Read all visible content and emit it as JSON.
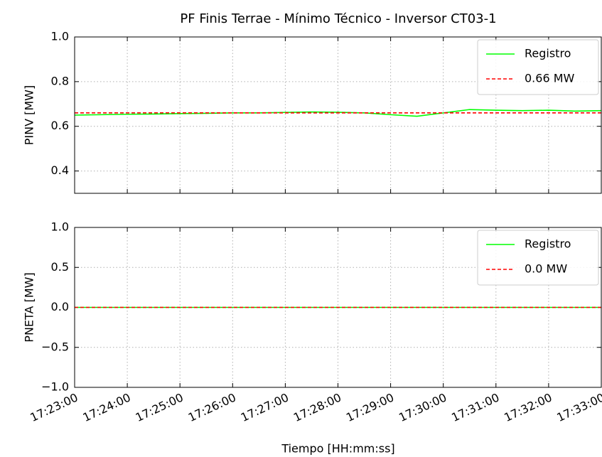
{
  "chart_data": [
    {
      "type": "line",
      "title": "PF Finis Terrae - Mínimo Técnico - Inversor CT03-1",
      "ylabel": "PINV [MW]",
      "x": [
        "17:23:00",
        "17:23:30",
        "17:24:00",
        "17:24:30",
        "17:25:00",
        "17:25:30",
        "17:26:00",
        "17:26:30",
        "17:27:00",
        "17:27:30",
        "17:28:00",
        "17:28:30",
        "17:29:00",
        "17:29:30",
        "17:30:00",
        "17:30:30",
        "17:31:00",
        "17:31:30",
        "17:32:00",
        "17:32:30",
        "17:33:00"
      ],
      "series": [
        {
          "name": "Registro",
          "color": "#00ff00",
          "style": "solid",
          "values": [
            0.65,
            0.652,
            0.654,
            0.655,
            0.657,
            0.658,
            0.66,
            0.66,
            0.662,
            0.664,
            0.663,
            0.66,
            0.652,
            0.645,
            0.66,
            0.675,
            0.672,
            0.67,
            0.672,
            0.668,
            0.67
          ]
        },
        {
          "name": "0.66 MW",
          "color": "#ff0000",
          "style": "dashed",
          "values": [
            0.66,
            0.66,
            0.66,
            0.66,
            0.66,
            0.66,
            0.66,
            0.66,
            0.66,
            0.66,
            0.66,
            0.66,
            0.66,
            0.66,
            0.66,
            0.66,
            0.66,
            0.66,
            0.66,
            0.66,
            0.66
          ]
        }
      ],
      "xlim": [
        "17:23:00",
        "17:33:00"
      ],
      "xticks": [
        "17:23:00",
        "17:24:00",
        "17:25:00",
        "17:26:00",
        "17:27:00",
        "17:28:00",
        "17:29:00",
        "17:30:00",
        "17:31:00",
        "17:32:00",
        "17:33:00"
      ],
      "show_xtick_labels": false,
      "ylim": [
        0.3,
        1.0
      ],
      "yticks": [
        {
          "value": 0.4,
          "label": "0.4"
        },
        {
          "value": 0.6,
          "label": "0.6"
        },
        {
          "value": 0.8,
          "label": "0.8"
        },
        {
          "value": 1,
          "label": "1.0"
        }
      ],
      "grid": true,
      "legend": "upper right"
    },
    {
      "type": "line",
      "ylabel": "PNETA [MW]",
      "xlabel": "Tiempo [HH:mm:ss]",
      "x": [
        "17:23:00",
        "17:23:30",
        "17:24:00",
        "17:24:30",
        "17:25:00",
        "17:25:30",
        "17:26:00",
        "17:26:30",
        "17:27:00",
        "17:27:30",
        "17:28:00",
        "17:28:30",
        "17:29:00",
        "17:29:30",
        "17:30:00",
        "17:30:30",
        "17:31:00",
        "17:31:30",
        "17:32:00",
        "17:32:30",
        "17:33:00"
      ],
      "series": [
        {
          "name": "Registro",
          "color": "#00ff00",
          "style": "solid",
          "values": [
            0,
            0,
            0,
            0,
            0,
            0,
            0,
            0,
            0,
            0,
            0,
            0,
            0,
            0,
            0,
            0,
            0,
            0,
            0,
            0,
            0
          ]
        },
        {
          "name": "0.0 MW",
          "color": "#ff0000",
          "style": "dashed",
          "values": [
            0,
            0,
            0,
            0,
            0,
            0,
            0,
            0,
            0,
            0,
            0,
            0,
            0,
            0,
            0,
            0,
            0,
            0,
            0,
            0,
            0
          ]
        }
      ],
      "xlim": [
        "17:23:00",
        "17:33:00"
      ],
      "xticks": [
        "17:23:00",
        "17:24:00",
        "17:25:00",
        "17:26:00",
        "17:27:00",
        "17:28:00",
        "17:29:00",
        "17:30:00",
        "17:31:00",
        "17:32:00",
        "17:33:00"
      ],
      "show_xtick_labels": true,
      "ylim": [
        -1,
        1
      ],
      "yticks": [
        {
          "value": -1,
          "label": "−1.0"
        },
        {
          "value": -0.5,
          "label": "−0.5"
        },
        {
          "value": 0,
          "label": "0.0"
        },
        0.5,
        {
          "value": 1,
          "label": "1.0"
        }
      ],
      "grid": true,
      "legend": "upper right"
    }
  ]
}
